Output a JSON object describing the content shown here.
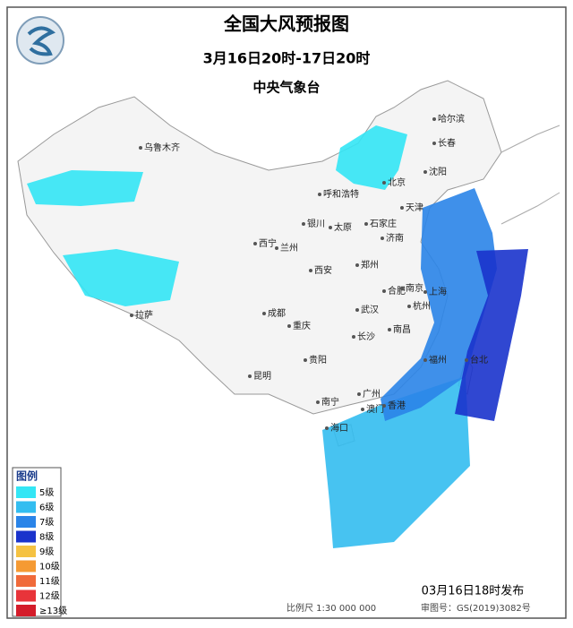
{
  "title": "全国大风预报图",
  "subtitle": "3月16日20时-17日20时",
  "issuer": "中央气象台",
  "legend": {
    "title": "图例",
    "items": [
      {
        "label": "5级",
        "color": "#33e6f5"
      },
      {
        "label": "6级",
        "color": "#33bdf0"
      },
      {
        "label": "7级",
        "color": "#2a84e8"
      },
      {
        "label": "8级",
        "color": "#1a33cc"
      },
      {
        "label": "9级",
        "color": "#f5c242"
      },
      {
        "label": "10级",
        "color": "#f59a33"
      },
      {
        "label": "11级",
        "color": "#f06a3a"
      },
      {
        "label": "12级",
        "color": "#e8343a"
      },
      {
        "label": "≥13级",
        "color": "#d41c2a"
      }
    ]
  },
  "cities": [
    "乌鲁木齐",
    "哈尔滨",
    "长春",
    "沈阳",
    "北京",
    "呼和浩特",
    "天津",
    "石家庄",
    "太原",
    "济南",
    "银川",
    "西宁",
    "兰州",
    "郑州",
    "西安",
    "合肥",
    "南京",
    "上海",
    "杭州",
    "武汉",
    "成都",
    "重庆",
    "长沙",
    "南昌",
    "贵阳",
    "福州",
    "昆明",
    "南宁",
    "广州",
    "澳门",
    "香港",
    "海口",
    "拉萨",
    "台北"
  ],
  "footer": {
    "issued": "03月16日18时发布",
    "scale": "比例尺 1:30 000 000",
    "review": "审图号：GS(2019)3082号"
  }
}
